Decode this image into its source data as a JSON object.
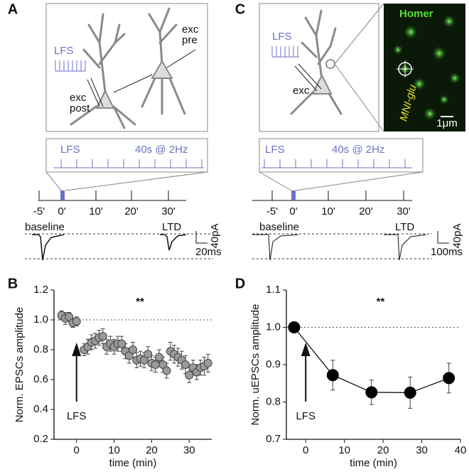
{
  "panel_A": {
    "label": "A",
    "icon_label": "LFS",
    "post_cell": [
      "exc",
      "post"
    ],
    "pre_cell": [
      "exc",
      "pre"
    ],
    "protocol_left": "LFS",
    "protocol_right": "40s @ 2Hz",
    "timeline_ticks": [
      "-5'",
      "0'",
      "10'",
      "20'",
      "30'"
    ],
    "trace_left": "baseline",
    "trace_right": "LTD",
    "scale_y": "40pA",
    "scale_x": "20ms"
  },
  "panel_C": {
    "label": "C",
    "icon_label": "LFS",
    "cell": "exc",
    "image_label": "Homer",
    "uncaging_label": "MNI-glu",
    "image_scale": "1μm",
    "protocol_left": "LFS",
    "protocol_right": "40s @ 2Hz",
    "timeline_ticks": [
      "-5'",
      "0'",
      "10'",
      "20'",
      "30'"
    ],
    "trace_left": "baseline",
    "trace_right": "LTD",
    "scale_y": "40pA",
    "scale_x": "100ms"
  },
  "chart_data": [
    {
      "type": "scatter",
      "panel": "B",
      "xlabel": "time (min)",
      "ylabel": "Norm. EPSCs amplitude",
      "annotation": "**",
      "arrow_label": "LFS",
      "color": "#9a9a9a",
      "reference_line": 1,
      "x": [
        -4,
        -3,
        -2,
        -1,
        0,
        2,
        3,
        4,
        5,
        6,
        7,
        8,
        9,
        10,
        11,
        12,
        13,
        14,
        15,
        16,
        17,
        18,
        19,
        20,
        21,
        22,
        23,
        24,
        25,
        26,
        27,
        28,
        29,
        30,
        31,
        32,
        33,
        34,
        35
      ],
      "values": [
        1.03,
        1.01,
        1.02,
        0.98,
        0.99,
        0.8,
        0.82,
        0.85,
        0.86,
        0.88,
        0.89,
        0.82,
        0.84,
        0.82,
        0.84,
        0.84,
        0.79,
        0.76,
        0.8,
        0.73,
        0.74,
        0.73,
        0.77,
        0.71,
        0.7,
        0.75,
        0.7,
        0.66,
        0.79,
        0.77,
        0.75,
        0.73,
        0.7,
        0.63,
        0.68,
        0.65,
        0.68,
        0.69,
        0.71
      ],
      "errors": [
        0.03,
        0.04,
        0.03,
        0.03,
        0.03,
        0.04,
        0.05,
        0.05,
        0.05,
        0.05,
        0.05,
        0.05,
        0.05,
        0.05,
        0.05,
        0.05,
        0.05,
        0.05,
        0.05,
        0.05,
        0.05,
        0.05,
        0.05,
        0.05,
        0.05,
        0.05,
        0.05,
        0.05,
        0.06,
        0.06,
        0.06,
        0.06,
        0.06,
        0.05,
        0.05,
        0.05,
        0.05,
        0.06,
        0.06
      ],
      "xlim": [
        -6,
        36
      ],
      "xticks": [
        0,
        10,
        20,
        30
      ],
      "ylim": [
        0.2,
        1.2
      ],
      "yticks": [
        0.2,
        0.4,
        0.6,
        0.8,
        {
          "value": 1,
          "label": "1.0"
        },
        1.2
      ]
    },
    {
      "type": "line",
      "panel": "D",
      "xlabel": "time (min)",
      "ylabel": "Norm. uEPSCs amplitude",
      "annotation": "**",
      "arrow_label": "LFS",
      "color": "#000000",
      "reference_line": 1,
      "x": [
        -3,
        7,
        17,
        27,
        37
      ],
      "values": [
        1,
        0.872,
        0.826,
        0.825,
        0.864
      ],
      "errors": [
        0,
        0.04,
        0.033,
        0.042,
        0.04
      ],
      "xlim": [
        -5,
        40
      ],
      "xticks": [
        0,
        10,
        20,
        30,
        40
      ],
      "ylim": [
        0.7,
        1.1
      ],
      "yticks": [
        0.7,
        0.8,
        0.9,
        {
          "value": 1,
          "label": "1.0"
        },
        1.1
      ]
    }
  ]
}
